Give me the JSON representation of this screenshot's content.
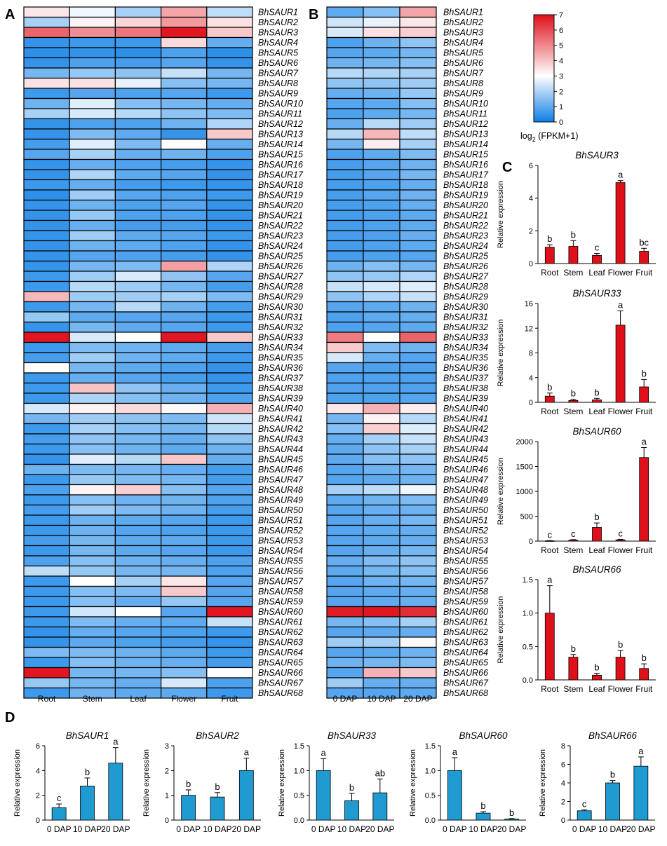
{
  "panel_labels": {
    "a": "A",
    "b": "B",
    "c": "C",
    "d": "D"
  },
  "genes": [
    "BhSAUR1",
    "BhSAUR2",
    "BhSAUR3",
    "BhSAUR4",
    "BhSAUR5",
    "BhSAUR6",
    "BhSAUR7",
    "BhSAUR8",
    "BhSAUR9",
    "BhSAUR10",
    "BhSAUR11",
    "BhSAUR12",
    "BhSAUR13",
    "BhSAUR14",
    "BhSAUR15",
    "BhSAUR16",
    "BhSAUR17",
    "BhSAUR18",
    "BhSAUR19",
    "BhSAUR20",
    "BhSAUR21",
    "BhSAUR22",
    "BhSAUR23",
    "BhSAUR24",
    "BhSAUR25",
    "BhSAUR26",
    "BhSAUR27",
    "BhSAUR28",
    "BhSAUR29",
    "BhSAUR30",
    "BhSAUR31",
    "BhSAUR32",
    "BhSAUR33",
    "BhSAUR34",
    "BhSAUR35",
    "BhSAUR36",
    "BhSAUR37",
    "BhSAUR38",
    "BhSAUR39",
    "BhSAUR40",
    "BhSAUR41",
    "BhSAUR42",
    "BhSAUR43",
    "BhSAUR44",
    "BhSAUR45",
    "BhSAUR46",
    "BhSAUR47",
    "BhSAUR48",
    "BhSAUR49",
    "BhSAUR50",
    "BhSAUR51",
    "BhSAUR52",
    "BhSAUR53",
    "BhSAUR54",
    "BhSAUR55",
    "BhSAUR56",
    "BhSAUR57",
    "BhSAUR58",
    "BhSAUR59",
    "BhSAUR60",
    "BhSAUR61",
    "BhSAUR62",
    "BhSAUR63",
    "BhSAUR64",
    "BhSAUR65",
    "BhSAUR66",
    "BhSAUR67",
    "BhSAUR68"
  ],
  "colorbar": {
    "ticks": [
      "0",
      "1",
      "2",
      "3",
      "4",
      "5",
      "6",
      "7"
    ],
    "min": 0,
    "max": 7,
    "label_main": "log",
    "label_sub": "2",
    "label_rest": " (FPKM+1)",
    "colors": [
      "#0d7fe6",
      "#ffffff",
      "#e0101a"
    ]
  },
  "chart_data": [
    {
      "id": "A",
      "type": "heatmap",
      "columns": [
        "Root",
        "Stem",
        "Leaf",
        "Flower",
        "Fruit"
      ],
      "values": [
        [
          3.4,
          2.8,
          1.9,
          4.5,
          2.2
        ],
        [
          1.9,
          3.2,
          3.7,
          4.7,
          3.5
        ],
        [
          5.6,
          4.9,
          5.3,
          6.9,
          3.9
        ],
        [
          0.5,
          0.6,
          0.6,
          3.6,
          1.1
        ],
        [
          0.4,
          0.5,
          0.4,
          0.8,
          0.4
        ],
        [
          0.5,
          0.8,
          0.7,
          0.9,
          0.5
        ],
        [
          1.3,
          1.7,
          1.6,
          2.3,
          1.3
        ],
        [
          3.5,
          3.5,
          2.7,
          1.5,
          1.3
        ],
        [
          0.6,
          0.9,
          0.8,
          0.9,
          0.6
        ],
        [
          1.2,
          2.6,
          1.5,
          1.3,
          1.1
        ],
        [
          1.9,
          2.5,
          2.1,
          1.6,
          1.4
        ],
        [
          0.5,
          0.8,
          0.8,
          1.2,
          2.0
        ],
        [
          0.5,
          1.4,
          1.0,
          0.5,
          3.9
        ],
        [
          0.7,
          2.6,
          1.4,
          3.0,
          1.1
        ],
        [
          0.9,
          1.9,
          1.1,
          1.2,
          0.8
        ],
        [
          0.5,
          1.1,
          0.8,
          0.7,
          0.5
        ],
        [
          0.5,
          2.0,
          1.0,
          0.9,
          0.5
        ],
        [
          0.6,
          1.1,
          0.7,
          0.6,
          0.5
        ],
        [
          0.4,
          1.8,
          0.9,
          0.8,
          0.6
        ],
        [
          0.5,
          1.2,
          0.8,
          0.9,
          0.5
        ],
        [
          0.5,
          1.7,
          0.8,
          0.8,
          0.5
        ],
        [
          0.5,
          1.1,
          0.7,
          0.7,
          0.5
        ],
        [
          0.5,
          1.8,
          1.0,
          0.9,
          0.6
        ],
        [
          0.5,
          1.2,
          1.0,
          0.8,
          0.5
        ],
        [
          0.5,
          0.9,
          0.8,
          0.7,
          0.5
        ],
        [
          0.5,
          1.3,
          1.4,
          4.6,
          2.0
        ],
        [
          0.6,
          1.8,
          2.5,
          1.6,
          0.9
        ],
        [
          0.6,
          2.1,
          1.8,
          1.3,
          0.7
        ],
        [
          4.2,
          1.8,
          1.8,
          1.9,
          1.4
        ],
        [
          0.6,
          1.3,
          2.1,
          1.2,
          0.7
        ],
        [
          1.7,
          1.0,
          0.9,
          0.9,
          0.6
        ],
        [
          0.5,
          1.3,
          1.0,
          0.9,
          0.6
        ],
        [
          6.9,
          2.5,
          3.0,
          6.9,
          3.9
        ],
        [
          0.6,
          1.4,
          1.2,
          1.0,
          0.7
        ],
        [
          0.7,
          1.8,
          1.2,
          1.0,
          0.6
        ],
        [
          3.0,
          1.3,
          1.0,
          0.8,
          0.5
        ],
        [
          0.6,
          1.1,
          0.9,
          0.7,
          0.5
        ],
        [
          0.6,
          4.0,
          1.6,
          1.1,
          0.6
        ],
        [
          0.6,
          2.0,
          1.5,
          1.2,
          0.8
        ],
        [
          2.5,
          3.2,
          3.6,
          3.1,
          4.3
        ],
        [
          1.3,
          1.8,
          1.6,
          1.4,
          2.4
        ],
        [
          0.6,
          1.9,
          1.5,
          1.3,
          2.1
        ],
        [
          0.7,
          1.6,
          1.3,
          1.1,
          1.6
        ],
        [
          0.6,
          1.5,
          1.2,
          1.0,
          1.2
        ],
        [
          0.5,
          2.6,
          2.1,
          3.9,
          1.1
        ],
        [
          1.2,
          1.4,
          1.3,
          1.1,
          0.7
        ],
        [
          0.6,
          1.7,
          1.4,
          1.3,
          0.7
        ],
        [
          0.8,
          3.2,
          3.8,
          1.5,
          0.9
        ],
        [
          0.6,
          1.5,
          1.2,
          1.2,
          0.8
        ],
        [
          0.7,
          1.8,
          1.4,
          1.2,
          0.7
        ],
        [
          0.6,
          1.2,
          1.0,
          0.9,
          0.6
        ],
        [
          0.6,
          1.2,
          0.9,
          0.8,
          0.6
        ],
        [
          0.7,
          1.3,
          1.0,
          1.0,
          0.6
        ],
        [
          0.6,
          1.3,
          1.0,
          0.9,
          0.6
        ],
        [
          0.8,
          1.5,
          1.2,
          1.1,
          0.8
        ],
        [
          2.2,
          1.7,
          1.3,
          1.3,
          0.8
        ],
        [
          0.6,
          3.0,
          1.9,
          3.4,
          0.9
        ],
        [
          0.6,
          1.5,
          1.4,
          3.9,
          0.9
        ],
        [
          0.6,
          1.5,
          1.1,
          1.7,
          0.9
        ],
        [
          0.6,
          2.4,
          3.0,
          0.9,
          6.9
        ],
        [
          0.6,
          1.4,
          1.1,
          1.0,
          2.3
        ],
        [
          0.5,
          1.1,
          0.9,
          0.8,
          0.6
        ],
        [
          0.5,
          1.0,
          0.8,
          0.7,
          0.5
        ],
        [
          1.4,
          1.4,
          1.2,
          1.0,
          0.6
        ],
        [
          0.6,
          1.5,
          1.2,
          1.1,
          0.7
        ],
        [
          6.9,
          1.3,
          1.3,
          1.5,
          3.0
        ],
        [
          1.7,
          1.3,
          1.1,
          2.5,
          0.8
        ],
        [
          0.6,
          1.2,
          1.0,
          1.0,
          0.6
        ]
      ]
    },
    {
      "id": "B",
      "type": "heatmap",
      "columns": [
        "0 DAP",
        "10 DAP",
        "20 DAP"
      ],
      "values": [
        [
          1.0,
          1.5,
          4.5
        ],
        [
          2.4,
          2.7,
          3.4
        ],
        [
          2.5,
          3.5,
          3.8
        ],
        [
          0.8,
          1.2,
          1.6
        ],
        [
          0.9,
          1.0,
          1.3
        ],
        [
          1.2,
          1.3,
          1.5
        ],
        [
          2.1,
          2.0,
          1.9
        ],
        [
          1.6,
          1.6,
          1.8
        ],
        [
          1.1,
          1.2,
          1.7
        ],
        [
          0.9,
          1.0,
          1.5
        ],
        [
          0.8,
          1.0,
          1.3
        ],
        [
          1.1,
          2.1,
          1.8
        ],
        [
          2.1,
          4.2,
          2.2
        ],
        [
          1.3,
          3.3,
          1.9
        ],
        [
          0.8,
          1.0,
          1.4
        ],
        [
          0.7,
          0.9,
          1.2
        ],
        [
          0.7,
          0.9,
          1.3
        ],
        [
          0.7,
          0.8,
          1.1
        ],
        [
          0.7,
          0.9,
          1.2
        ],
        [
          0.7,
          0.8,
          1.1
        ],
        [
          0.7,
          0.8,
          1.0
        ],
        [
          0.7,
          0.8,
          1.0
        ],
        [
          0.7,
          0.8,
          1.1
        ],
        [
          0.7,
          0.8,
          1.0
        ],
        [
          0.7,
          0.8,
          0.9
        ],
        [
          1.2,
          1.5,
          1.3
        ],
        [
          1.6,
          1.7,
          2.0
        ],
        [
          2.3,
          2.5,
          2.6
        ],
        [
          1.6,
          2.0,
          2.3
        ],
        [
          0.9,
          1.0,
          1.2
        ],
        [
          0.8,
          1.0,
          1.1
        ],
        [
          0.8,
          0.9,
          1.0
        ],
        [
          5.2,
          3.0,
          5.6
        ],
        [
          3.9,
          1.4,
          1.2
        ],
        [
          2.5,
          1.1,
          0.9
        ],
        [
          0.9,
          0.8,
          0.8
        ],
        [
          0.8,
          0.8,
          0.8
        ],
        [
          0.8,
          0.8,
          0.8
        ],
        [
          0.8,
          0.8,
          0.9
        ],
        [
          3.4,
          4.3,
          3.3
        ],
        [
          1.3,
          3.2,
          2.1
        ],
        [
          1.5,
          3.8,
          2.6
        ],
        [
          1.1,
          1.9,
          2.3
        ],
        [
          1.0,
          1.6,
          1.9
        ],
        [
          1.0,
          1.5,
          1.6
        ],
        [
          0.9,
          1.2,
          1.3
        ],
        [
          0.9,
          1.0,
          1.2
        ],
        [
          1.9,
          2.2,
          2.8
        ],
        [
          1.0,
          1.2,
          1.4
        ],
        [
          0.9,
          1.1,
          1.2
        ],
        [
          0.9,
          1.1,
          1.3
        ],
        [
          0.9,
          1.0,
          1.1
        ],
        [
          0.9,
          1.0,
          1.1
        ],
        [
          0.9,
          1.1,
          1.3
        ],
        [
          1.1,
          1.4,
          1.6
        ],
        [
          1.0,
          1.3,
          1.5
        ],
        [
          0.9,
          1.2,
          1.3
        ],
        [
          0.9,
          1.0,
          1.1
        ],
        [
          0.9,
          1.0,
          1.1
        ],
        [
          6.8,
          6.9,
          6.5
        ],
        [
          1.3,
          1.5,
          1.9
        ],
        [
          0.9,
          1.0,
          1.1
        ],
        [
          1.8,
          1.9,
          3.1
        ],
        [
          0.9,
          1.0,
          1.2
        ],
        [
          1.2,
          1.3,
          1.4
        ],
        [
          0.9,
          4.3,
          3.9
        ],
        [
          1.8,
          1.1,
          1.1
        ],
        [
          0.9,
          0.9,
          1.0
        ]
      ]
    },
    {
      "id": "C1",
      "type": "bar",
      "title": "BhSAUR3",
      "categories": [
        "Root",
        "Stem",
        "Leaf",
        "Flower",
        "Fruit"
      ],
      "values": [
        1.0,
        1.05,
        0.5,
        4.95,
        0.75
      ],
      "errors": [
        0.15,
        0.35,
        0.12,
        0.12,
        0.18
      ],
      "letters": [
        "b",
        "b",
        "c",
        "a",
        "bc"
      ],
      "ylabel": "Relative expression",
      "ylim": [
        0,
        6
      ],
      "yticks": [
        0,
        2,
        4,
        6
      ],
      "ytick_labels": [
        "0",
        "2",
        "4",
        "6"
      ]
    },
    {
      "id": "C2",
      "type": "bar",
      "title": "BhSAUR33",
      "categories": [
        "Root",
        "Stem",
        "Leaf",
        "Flower",
        "Fruit"
      ],
      "values": [
        1.0,
        0.3,
        0.4,
        12.5,
        2.5
      ],
      "errors": [
        0.5,
        0.2,
        0.25,
        2.3,
        1.2
      ],
      "letters": [
        "b",
        "b",
        "b",
        "a",
        "b"
      ],
      "ylabel": "Relative expression",
      "ylim": [
        0,
        16
      ],
      "yticks": [
        0,
        4,
        8,
        12,
        16
      ],
      "ytick_labels": [
        "0",
        "4",
        "8",
        "12",
        "16"
      ]
    },
    {
      "id": "C3",
      "type": "bar",
      "title": "BhSAUR60",
      "categories": [
        "Root",
        "Stem",
        "Leaf",
        "Flower",
        "Fruit"
      ],
      "values": [
        5,
        20,
        275,
        25,
        1680
      ],
      "errors": [
        5,
        10,
        90,
        10,
        200
      ],
      "letters": [
        "c",
        "c",
        "b",
        "c",
        "a"
      ],
      "ylabel": "Relative expression",
      "ylim": [
        0,
        2000
      ],
      "yticks": [
        0,
        500,
        1000,
        1500,
        2000
      ],
      "ytick_labels": [
        "0",
        "500",
        "1000",
        "1500",
        "2000"
      ]
    },
    {
      "id": "C4",
      "type": "bar",
      "title": "BhSAUR66",
      "categories": [
        "Root",
        "Stem",
        "Leaf",
        "Flower",
        "Fruit"
      ],
      "values": [
        1.0,
        0.34,
        0.07,
        0.34,
        0.17
      ],
      "errors": [
        0.41,
        0.04,
        0.03,
        0.1,
        0.07
      ],
      "letters": [
        "a",
        "b",
        "b",
        "b",
        "b"
      ],
      "ylabel": "Relative expression",
      "ylim": [
        0,
        1.5
      ],
      "yticks": [
        0,
        0.5,
        1.0,
        1.5
      ],
      "ytick_labels": [
        "0.0",
        "0.5",
        "1.0",
        "1.5"
      ]
    },
    {
      "id": "D1",
      "type": "bar",
      "title": "BhSAUR1",
      "categories": [
        "0 DAP",
        "10 DAP",
        "20 DAP"
      ],
      "values": [
        1.0,
        2.75,
        4.6
      ],
      "errors": [
        0.3,
        0.65,
        1.25
      ],
      "letters": [
        "c",
        "b",
        "a"
      ],
      "ylabel": "Relative expression",
      "ylim": [
        0,
        6
      ],
      "yticks": [
        0,
        2,
        4,
        6
      ],
      "ytick_labels": [
        "0",
        "2",
        "4",
        "6"
      ]
    },
    {
      "id": "D2",
      "type": "bar",
      "title": "BhSAUR2",
      "categories": [
        "0 DAP",
        "10 DAP",
        "20 DAP"
      ],
      "values": [
        1.0,
        0.93,
        2.0
      ],
      "errors": [
        0.22,
        0.18,
        0.5
      ],
      "letters": [
        "b",
        "b",
        "a"
      ],
      "ylabel": "Relative expression",
      "ylim": [
        0,
        3
      ],
      "yticks": [
        0,
        1,
        2,
        3
      ],
      "ytick_labels": [
        "0",
        "1",
        "2",
        "3"
      ]
    },
    {
      "id": "D3",
      "type": "bar",
      "title": "BhSAUR33",
      "categories": [
        "0 DAP",
        "10 DAP",
        "20 DAP"
      ],
      "values": [
        1.0,
        0.39,
        0.55
      ],
      "errors": [
        0.24,
        0.15,
        0.28
      ],
      "letters": [
        "a",
        "b",
        "ab"
      ],
      "ylabel": "Relative expression",
      "ylim": [
        0,
        1.5
      ],
      "yticks": [
        0,
        0.5,
        1.0,
        1.5
      ],
      "ytick_labels": [
        "0.0",
        "0.5",
        "1.0",
        "1.5"
      ]
    },
    {
      "id": "D4",
      "type": "bar",
      "title": "BhSAUR60",
      "categories": [
        "0 DAP",
        "10 DAP",
        "20 DAP"
      ],
      "values": [
        1.0,
        0.14,
        0.02
      ],
      "errors": [
        0.26,
        0.03,
        0.01
      ],
      "letters": [
        "a",
        "b",
        "b"
      ],
      "ylabel": "Relative expression",
      "ylim": [
        0,
        1.5
      ],
      "yticks": [
        0,
        0.5,
        1.0,
        1.5
      ],
      "ytick_labels": [
        "0.0",
        "0.5",
        "1.0",
        "1.5"
      ]
    },
    {
      "id": "D5",
      "type": "bar",
      "title": "BhSAUR66",
      "categories": [
        "0 DAP",
        "10 DAP",
        "20 DAP"
      ],
      "values": [
        1.0,
        4.0,
        5.8
      ],
      "errors": [
        0.1,
        0.25,
        1.0
      ],
      "letters": [
        "c",
        "b",
        "a"
      ],
      "ylabel": "Relative expression",
      "ylim": [
        0,
        8
      ],
      "yticks": [
        0,
        2,
        4,
        6,
        8
      ],
      "ytick_labels": [
        "0",
        "2",
        "4",
        "6",
        "8"
      ]
    }
  ],
  "colors": {
    "bar_red": "#e0101a",
    "bar_blue": "#1f9bd1",
    "axis": "#000000"
  }
}
